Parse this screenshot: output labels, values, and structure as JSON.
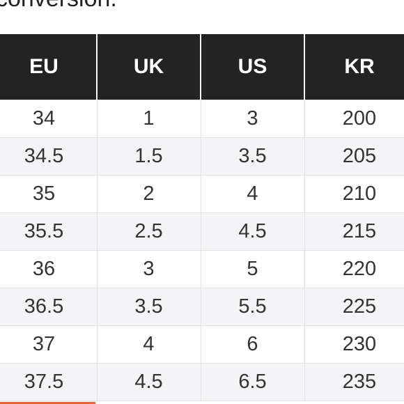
{
  "intro": {
    "text": "conversion."
  },
  "table": {
    "headers": [
      "EU",
      "UK",
      "US",
      "KR"
    ],
    "rows": [
      [
        "34",
        "1",
        "3",
        "200"
      ],
      [
        "34.5",
        "1.5",
        "3.5",
        "205"
      ],
      [
        "35",
        "2",
        "4",
        "210"
      ],
      [
        "35.5",
        "2.5",
        "4.5",
        "215"
      ],
      [
        "36",
        "3",
        "5",
        "220"
      ],
      [
        "36.5",
        "3.5",
        "5.5",
        "225"
      ],
      [
        "37",
        "4",
        "6",
        "230"
      ],
      [
        "37.5",
        "4.5",
        "6.5",
        "235"
      ]
    ]
  },
  "colors": {
    "header_background": "#232323",
    "header_text": "#ffffff",
    "row_alt_background": "#f4f4f6",
    "accent": "#e06a3c"
  }
}
